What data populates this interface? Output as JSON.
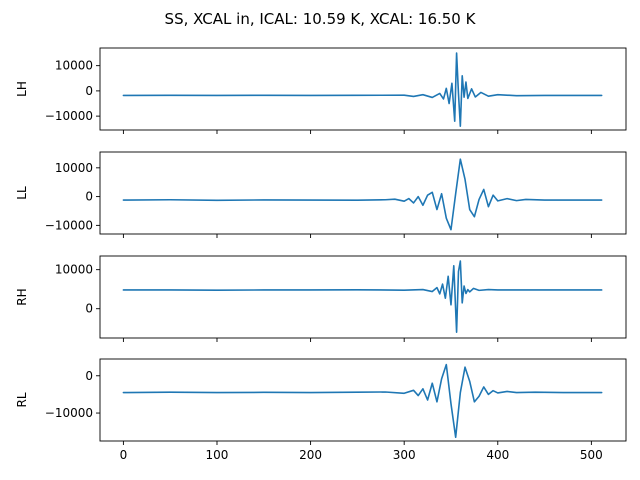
{
  "chart_data": {
    "type": "line",
    "title": "SS, XCAL in, ICAL: 10.59 K, XCAL: 16.50 K",
    "xlabel": "",
    "xlim": [
      -25,
      537
    ],
    "x_ticks": [
      0,
      100,
      200,
      300,
      400,
      500
    ],
    "grid": false,
    "line_color": "#1f77b4",
    "panels": [
      {
        "ylabel": "LH",
        "ylim": [
          -15500,
          17000
        ],
        "y_ticks": [
          -10000,
          0,
          10000
        ],
        "series": [
          {
            "x": [
              0,
              50,
              100,
              150,
              200,
              250,
              300,
              310,
              320,
              330,
              338,
              342,
              345,
              348,
              351,
              354,
              356,
              358,
              360,
              362,
              364,
              366,
              368,
              372,
              376,
              382,
              390,
              400,
              420,
              450,
              480,
              511
            ],
            "y": [
              -1800,
              -1750,
              -1800,
              -1750,
              -1800,
              -1750,
              -1700,
              -2200,
              -1500,
              -2600,
              -1000,
              -3200,
              1000,
              -5000,
              3000,
              -12000,
              15000,
              -1000,
              -14000,
              6000,
              -2500,
              3500,
              -3000,
              800,
              -2400,
              -600,
              -2100,
              -1500,
              -1900,
              -1800,
              -1800,
              -1800
            ]
          }
        ]
      },
      {
        "ylabel": "LL",
        "ylim": [
          -13000,
          15500
        ],
        "y_ticks": [
          -10000,
          0,
          10000
        ],
        "series": [
          {
            "x": [
              0,
              50,
              100,
              150,
              200,
              250,
              280,
              290,
              300,
              305,
              310,
              315,
              320,
              325,
              330,
              335,
              340,
              345,
              350,
              355,
              360,
              365,
              370,
              375,
              380,
              385,
              390,
              395,
              400,
              410,
              420,
              430,
              450,
              480,
              511
            ],
            "y": [
              -1200,
              -1100,
              -1300,
              -1150,
              -1200,
              -1250,
              -1100,
              -900,
              -1600,
              -700,
              -2200,
              0,
              -3000,
              500,
              1500,
              -4500,
              1000,
              -7500,
              -11500,
              1000,
              13000,
              6000,
              -4500,
              -7000,
              -1000,
              2500,
              -3500,
              500,
              -1500,
              -700,
              -1400,
              -1000,
              -1200,
              -1200,
              -1200
            ]
          }
        ]
      },
      {
        "ylabel": "RH",
        "ylim": [
          -7500,
          13500
        ],
        "y_ticks": [
          0,
          10000
        ],
        "series": [
          {
            "x": [
              0,
              50,
              100,
              150,
              200,
              250,
              300,
              320,
              330,
              335,
              338,
              341,
              344,
              347,
              350,
              353,
              356,
              358,
              360,
              362,
              364,
              366,
              368,
              370,
              374,
              380,
              390,
              400,
              420,
              450,
              480,
              511
            ],
            "y": [
              4800,
              4800,
              4750,
              4800,
              4800,
              4850,
              4750,
              4900,
              4400,
              5400,
              3800,
              6300,
              2700,
              8300,
              1000,
              11000,
              -6000,
              9500,
              12200,
              1500,
              5800,
              3900,
              4900,
              4300,
              5200,
              4700,
              4900,
              4800,
              4800,
              4800,
              4800,
              4800
            ]
          }
        ]
      },
      {
        "ylabel": "RL",
        "ylim": [
          -17500,
          4500
        ],
        "y_ticks": [
          -10000,
          0
        ],
        "series": [
          {
            "x": [
              0,
              50,
              100,
              150,
              200,
              250,
              280,
              300,
              310,
              315,
              320,
              325,
              330,
              335,
              340,
              345,
              350,
              355,
              360,
              365,
              370,
              375,
              380,
              385,
              390,
              395,
              400,
              410,
              420,
              440,
              470,
              511
            ],
            "y": [
              -4500,
              -4400,
              -4500,
              -4450,
              -4500,
              -4400,
              -4350,
              -4700,
              -3900,
              -5300,
              -3500,
              -6500,
              -2000,
              -7000,
              -800,
              3000,
              -7500,
              -16500,
              -4500,
              2300,
              -1500,
              -7000,
              -5500,
              -3000,
              -5000,
              -4000,
              -4600,
              -4200,
              -4500,
              -4400,
              -4500,
              -4500
            ]
          }
        ]
      }
    ]
  }
}
